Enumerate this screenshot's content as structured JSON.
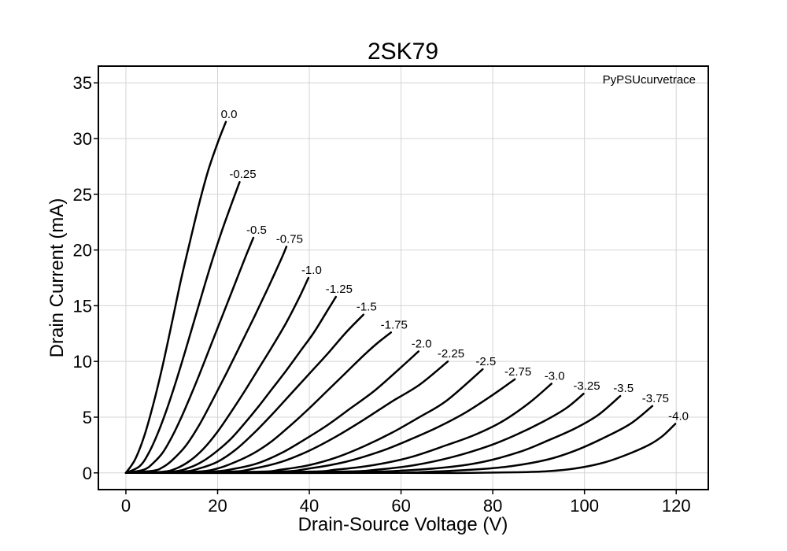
{
  "chart_data": {
    "type": "line",
    "title": "2SK79",
    "xlabel": "Drain-Source Voltage (V)",
    "ylabel": "Drain Current (mA)",
    "annotation": "PyPSUcurvetrace",
    "xlim": [
      -6,
      127
    ],
    "ylim": [
      -1.5,
      36.5
    ],
    "xticks": [
      0,
      20,
      40,
      60,
      80,
      100,
      120
    ],
    "yticks": [
      0,
      5,
      10,
      15,
      20,
      25,
      30,
      35
    ],
    "grid": true,
    "series": [
      {
        "name": "0.0",
        "x": [
          0,
          2,
          4,
          6,
          8,
          10,
          12,
          14,
          16,
          18,
          20,
          21.8
        ],
        "y": [
          0,
          1.2,
          3.3,
          6.2,
          9.6,
          13.4,
          17.3,
          20.8,
          24.2,
          27.2,
          29.6,
          31.5
        ]
      },
      {
        "name": "-0.25",
        "x": [
          0,
          3,
          5,
          7,
          9,
          11,
          13,
          15,
          17,
          19,
          21,
          23,
          24.8
        ],
        "y": [
          0,
          0.6,
          1.8,
          3.6,
          5.8,
          8.3,
          11.0,
          13.8,
          16.6,
          19.3,
          21.8,
          24.1,
          26.1
        ]
      },
      {
        "name": "-0.5",
        "x": [
          0,
          4,
          6,
          8,
          10,
          12,
          14,
          16,
          18,
          20,
          22,
          24,
          26,
          27.8
        ],
        "y": [
          0,
          0.3,
          0.9,
          1.8,
          3.2,
          4.9,
          6.8,
          8.8,
          10.9,
          13.0,
          15.1,
          17.2,
          19.3,
          21.1
        ]
      },
      {
        "name": "-0.75",
        "x": [
          0,
          6,
          8,
          10,
          13,
          16,
          19,
          22,
          25,
          28,
          31,
          34,
          35
        ],
        "y": [
          0,
          0.2,
          0.5,
          1.1,
          2.4,
          4.3,
          6.6,
          9.0,
          11.5,
          14.0,
          16.6,
          19.3,
          20.3
        ]
      },
      {
        "name": "-1.0",
        "x": [
          0,
          8,
          11,
          14,
          17,
          20,
          23,
          26,
          29,
          32,
          35,
          38,
          39.8
        ],
        "y": [
          0,
          0.1,
          0.4,
          1.1,
          2.2,
          3.7,
          5.5,
          7.4,
          9.4,
          11.4,
          13.5,
          15.9,
          17.5
        ]
      },
      {
        "name": "-1.25",
        "x": [
          0,
          10,
          14,
          17,
          20,
          23,
          26,
          29,
          32,
          35,
          38,
          41,
          44,
          45.8
        ],
        "y": [
          0,
          0.1,
          0.5,
          1.1,
          2.0,
          3.1,
          4.5,
          6.0,
          7.6,
          9.2,
          10.9,
          12.6,
          14.6,
          15.8
        ]
      },
      {
        "name": "-1.5",
        "x": [
          0,
          12,
          16,
          20,
          24,
          28,
          32,
          36,
          40,
          44,
          48,
          51.8
        ],
        "y": [
          0,
          0.1,
          0.4,
          1.0,
          2.1,
          3.6,
          5.3,
          7.1,
          8.9,
          10.7,
          12.6,
          14.2
        ]
      },
      {
        "name": "-1.75",
        "x": [
          0,
          15,
          20,
          24,
          28,
          32,
          36,
          40,
          44,
          48,
          52,
          55,
          57.8
        ],
        "y": [
          0,
          0.1,
          0.4,
          1.0,
          1.8,
          2.9,
          4.3,
          5.8,
          7.4,
          9.0,
          10.6,
          11.7,
          12.6
        ]
      },
      {
        "name": "-2.0",
        "x": [
          0,
          18,
          24,
          29,
          34,
          39,
          44,
          49,
          54,
          59,
          63.8
        ],
        "y": [
          0,
          0.1,
          0.4,
          0.9,
          1.8,
          3.0,
          4.3,
          5.8,
          7.3,
          9.1,
          10.9
        ]
      },
      {
        "name": "-2.25",
        "x": [
          0,
          22,
          28,
          34,
          40,
          46,
          52,
          58,
          64,
          70.2
        ],
        "y": [
          0,
          0.1,
          0.4,
          1.0,
          2.0,
          3.3,
          4.8,
          6.4,
          7.9,
          10.0
        ]
      },
      {
        "name": "-2.5",
        "x": [
          0,
          28,
          34,
          40,
          46,
          52,
          58,
          64,
          70,
          77.8
        ],
        "y": [
          0,
          0.1,
          0.3,
          0.7,
          1.4,
          2.4,
          3.6,
          5.0,
          6.5,
          9.3
        ]
      },
      {
        "name": "-2.75",
        "x": [
          0,
          32,
          40,
          48,
          56,
          62,
          68,
          74,
          80,
          84.8
        ],
        "y": [
          0,
          0.1,
          0.4,
          1.0,
          2.0,
          3.0,
          4.1,
          5.4,
          7.0,
          8.4
        ]
      },
      {
        "name": "-3.0",
        "x": [
          0,
          38,
          46,
          54,
          62,
          70,
          76,
          82,
          88,
          92.8
        ],
        "y": [
          0,
          0.1,
          0.3,
          0.7,
          1.4,
          2.5,
          3.4,
          4.6,
          6.3,
          8.0
        ]
      },
      {
        "name": "-3.25",
        "x": [
          0,
          45,
          55,
          63,
          71,
          79,
          85,
          91,
          96,
          99.8
        ],
        "y": [
          0,
          0.1,
          0.3,
          0.7,
          1.4,
          2.4,
          3.4,
          4.6,
          5.8,
          7.1
        ]
      },
      {
        "name": "-3.5",
        "x": [
          0,
          50,
          60,
          70,
          78,
          86,
          92,
          98,
          103,
          107.8
        ],
        "y": [
          0,
          0.1,
          0.2,
          0.5,
          1.0,
          1.9,
          2.9,
          4.0,
          5.2,
          6.9
        ]
      },
      {
        "name": "-3.75",
        "x": [
          0,
          55,
          66,
          76,
          84,
          92,
          98,
          104,
          110,
          114.8
        ],
        "y": [
          0,
          0.0,
          0.1,
          0.3,
          0.6,
          1.2,
          2.0,
          3.1,
          4.4,
          6.0
        ]
      },
      {
        "name": "-4.0",
        "x": [
          0,
          60,
          75,
          85,
          92,
          98,
          104,
          109,
          114,
          117,
          119.8
        ],
        "y": [
          0,
          0.0,
          0.0,
          0.05,
          0.15,
          0.4,
          0.9,
          1.6,
          2.5,
          3.3,
          4.4
        ]
      }
    ]
  }
}
